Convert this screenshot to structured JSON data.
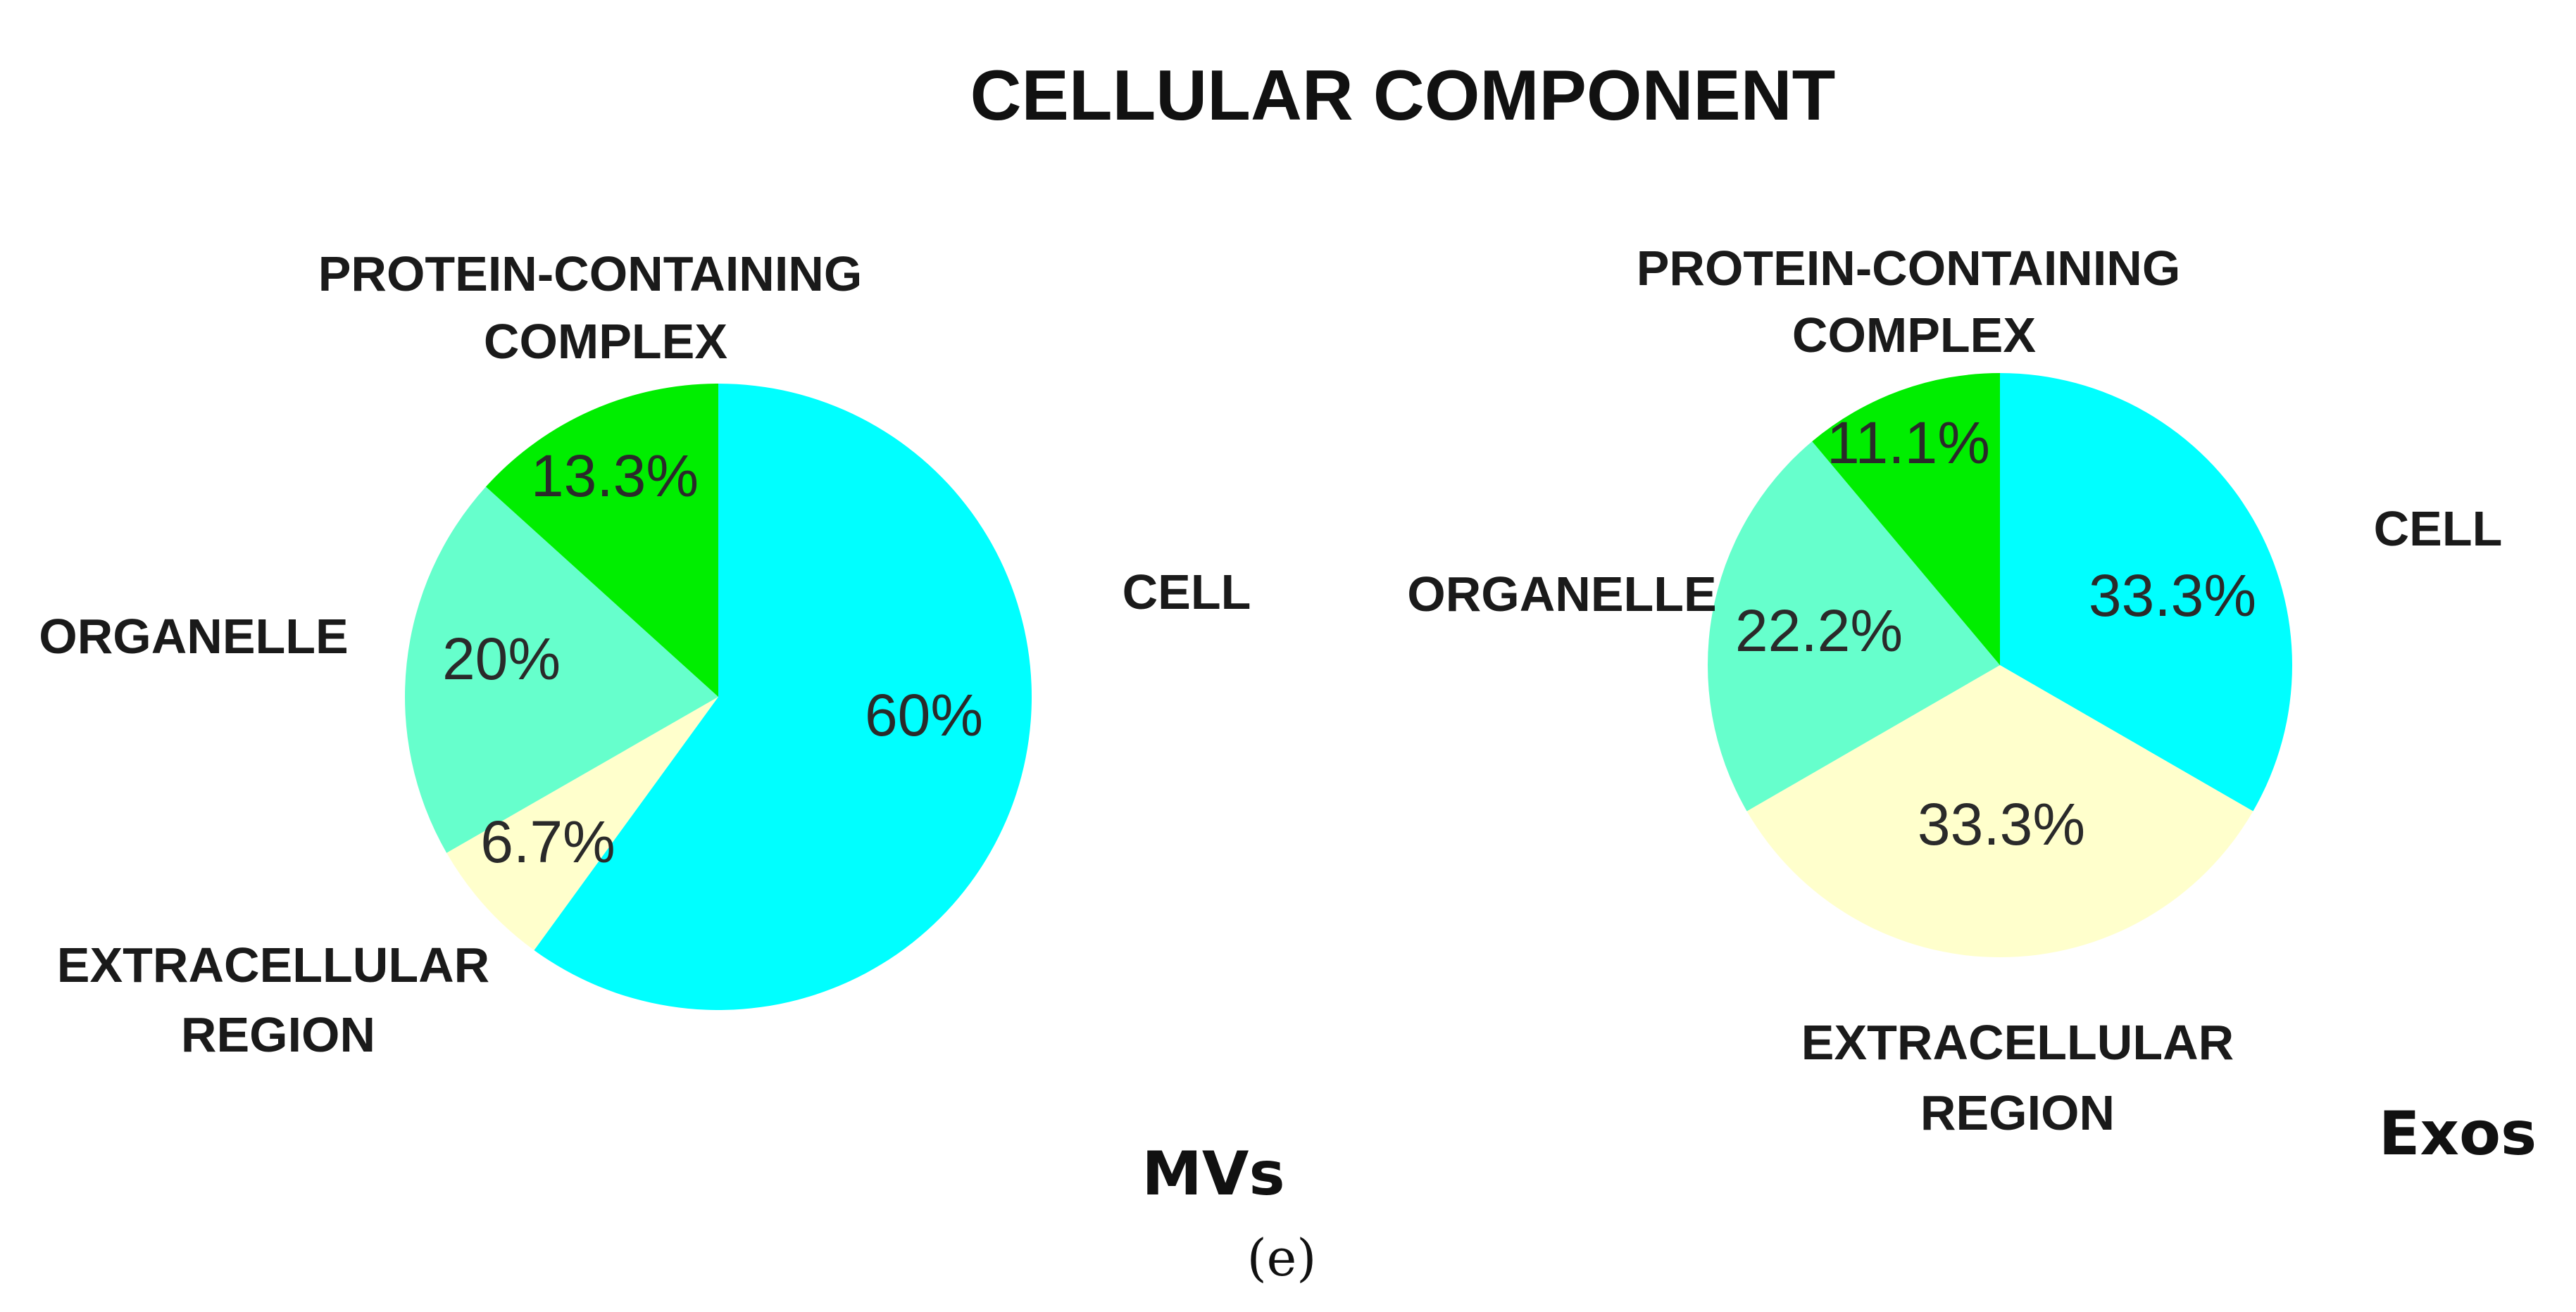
{
  "title": "CELLULAR COMPONENT",
  "panel_label": "(e)",
  "chart_data": [
    {
      "type": "pie",
      "name": "MVs",
      "slices": [
        {
          "label": "CELL",
          "value": 60,
          "value_label": "60%",
          "color": "#00FFFF"
        },
        {
          "label": "EXTRACELLULAR REGION",
          "value": 6.7,
          "value_label": "6.7%",
          "color": "#FFFFCC"
        },
        {
          "label": "ORGANELLE",
          "value": 20,
          "value_label": "20%",
          "color": "#66FFCC"
        },
        {
          "label": "PROTEIN-CONTAINING COMPLEX",
          "value": 13.3,
          "value_label": "13.3%",
          "color": "#00EE00"
        }
      ]
    },
    {
      "type": "pie",
      "name": "Exos",
      "slices": [
        {
          "label": "CELL",
          "value": 33.3,
          "value_label": "33.3%",
          "color": "#00FFFF"
        },
        {
          "label": "EXTRACELLULAR REGION",
          "value": 33.3,
          "value_label": "33.3%",
          "color": "#FFFFCC"
        },
        {
          "label": "ORGANELLE",
          "value": 22.2,
          "value_label": "22.2%",
          "color": "#66FFCC"
        },
        {
          "label": "PROTEIN-CONTAINING COMPLEX",
          "value": 11.1,
          "value_label": "11.1%",
          "color": "#00EE00"
        }
      ]
    }
  ],
  "category_text": {
    "cell": "CELL",
    "organelle": "ORGANELLE",
    "protein_line1": "PROTEIN-CONTAINING",
    "protein_line2": "COMPLEX",
    "extracellular_line1": "EXTRACELLULAR",
    "extracellular_line2": "REGION"
  }
}
